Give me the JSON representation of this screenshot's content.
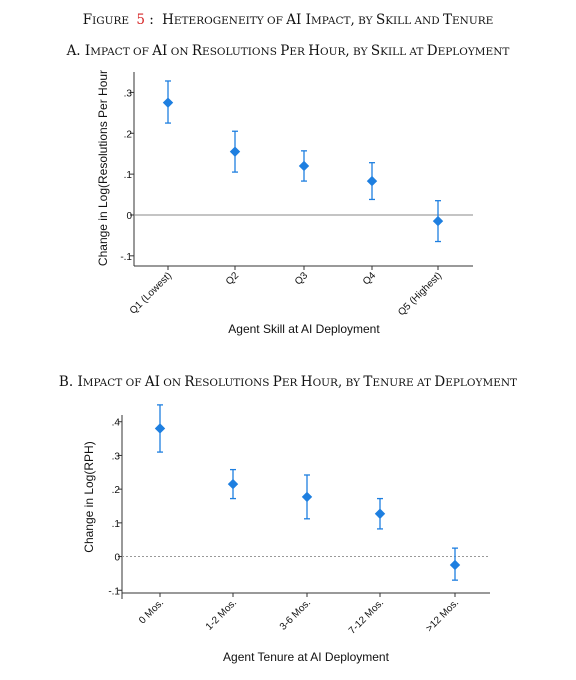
{
  "figure": {
    "label": "Figure",
    "number": "5",
    "title": "Heterogeneity of AI Impact, by Skill and Tenure"
  },
  "colors": {
    "marker": "#1E7FE0",
    "axis": "#333333",
    "zero_line_a": "#888888",
    "zero_line_b": "#999999",
    "figure_number": "#d62728",
    "text": "#111111"
  },
  "chart_data": [
    {
      "type": "scatter",
      "panel_title": "A. Impact of AI on Resolutions Per Hour, by Skill at Deployment",
      "xlabel": "Agent Skill at AI Deployment",
      "ylabel": "Change in Log(Resolutions Per Hour",
      "categories": [
        "Q1 (Lowest)",
        "Q2",
        "Q3",
        "Q4",
        "Q5 (Highest)"
      ],
      "values": [
        0.275,
        0.155,
        0.12,
        0.083,
        -0.015
      ],
      "ci_low": [
        0.225,
        0.105,
        0.083,
        0.038,
        -0.065
      ],
      "ci_high": [
        0.328,
        0.205,
        0.157,
        0.128,
        0.035
      ],
      "yticks": [
        -0.1,
        0,
        0.1,
        0.2,
        0.3
      ],
      "ytick_labels": [
        "-.1",
        "0",
        ".1",
        ".2",
        ".3"
      ],
      "ylim": [
        -0.12,
        0.35
      ],
      "zero_line": "solid",
      "grid": false,
      "legend": "none"
    },
    {
      "type": "scatter",
      "panel_title": "B. Impact of AI on Resolutions Per Hour, by Tenure at Deployment",
      "xlabel": "Agent Tenure at AI Deployment",
      "ylabel": "Change in Log(RPH)",
      "categories": [
        "0 Mos.",
        "1-2 Mos.",
        "3-6 Mos.",
        "7-12 Mos.",
        ">12 Mos."
      ],
      "values": [
        0.38,
        0.215,
        0.177,
        0.127,
        -0.025
      ],
      "ci_low": [
        0.31,
        0.172,
        0.112,
        0.082,
        -0.07
      ],
      "ci_high": [
        0.45,
        0.258,
        0.242,
        0.172,
        0.025
      ],
      "yticks": [
        -0.1,
        0,
        0.1,
        0.2,
        0.3,
        0.4
      ],
      "ytick_labels": [
        "-.1",
        "0",
        ".1",
        ".2",
        ".3",
        ".4"
      ],
      "ylim": [
        -0.12,
        0.42
      ],
      "zero_line": "dashed",
      "grid": false,
      "legend": "none"
    }
  ]
}
